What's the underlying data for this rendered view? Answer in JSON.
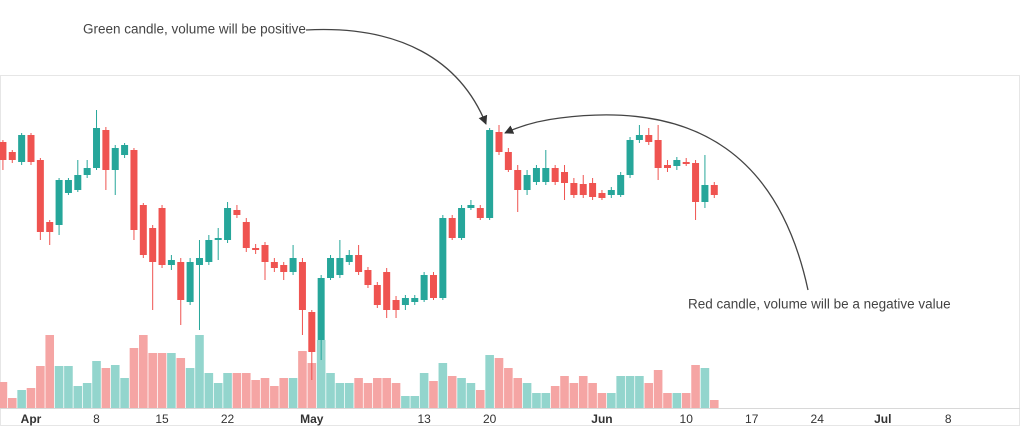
{
  "chart_data": {
    "type": "candlestick",
    "annotations": [
      "Green candle, volume will be positive",
      "Red candle, volume will be a negative value"
    ],
    "x": [
      "03-29",
      "03-30",
      "03-31",
      "04-01",
      "04-02",
      "04-03",
      "04-04",
      "04-05",
      "04-06",
      "04-07",
      "04-08",
      "04-09",
      "04-10",
      "04-11",
      "04-12",
      "04-13",
      "04-14",
      "04-15",
      "04-16",
      "04-17",
      "04-18",
      "04-19",
      "04-20",
      "04-21",
      "04-22",
      "04-23",
      "04-24",
      "04-25",
      "04-26",
      "04-27",
      "04-28",
      "04-29",
      "04-30",
      "05-01",
      "05-02",
      "05-03",
      "05-04",
      "05-05",
      "05-06",
      "05-07",
      "05-08",
      "05-09",
      "05-10",
      "05-11",
      "05-12",
      "05-13",
      "05-14",
      "05-15",
      "05-16",
      "05-17",
      "05-18",
      "05-19",
      "05-20",
      "05-21",
      "05-22",
      "05-23",
      "05-24",
      "05-25",
      "05-26",
      "05-27",
      "05-28",
      "05-29",
      "05-30",
      "05-31",
      "06-01",
      "06-02",
      "06-03",
      "06-04",
      "06-05",
      "06-06",
      "06-07",
      "06-08",
      "06-09",
      "06-10",
      "06-11",
      "06-12",
      "06-13"
    ],
    "open": [
      258,
      248,
      238,
      265,
      240,
      178,
      175,
      207,
      210,
      225,
      232,
      270,
      230,
      245,
      250,
      195,
      172,
      192,
      135,
      138,
      98,
      135,
      138,
      160,
      160,
      190,
      178,
      152,
      155,
      138,
      135,
      128,
      138,
      88,
      60,
      122,
      125,
      138,
      145,
      130,
      115,
      128,
      100,
      95,
      98,
      100,
      125,
      102,
      182,
      162,
      192,
      192,
      182,
      268,
      248,
      230,
      210,
      218,
      218,
      232,
      228,
      217,
      216,
      217,
      207,
      205,
      205,
      225,
      260,
      265,
      260,
      235,
      234,
      238,
      237,
      198,
      215
    ],
    "high": [
      260,
      250,
      267,
      267,
      242,
      180,
      222,
      222,
      240,
      240,
      290,
      273,
      255,
      257,
      252,
      197,
      175,
      195,
      145,
      142,
      142,
      160,
      165,
      172,
      198,
      195,
      182,
      156,
      158,
      142,
      138,
      155,
      142,
      90,
      125,
      145,
      160,
      150,
      155,
      133,
      118,
      132,
      104,
      105,
      105,
      128,
      128,
      185,
      185,
      195,
      200,
      195,
      272,
      275,
      252,
      235,
      230,
      235,
      250,
      235,
      235,
      222,
      225,
      222,
      210,
      213,
      228,
      263,
      275,
      272,
      275,
      240,
      243,
      242,
      240,
      245,
      218
    ],
    "low": [
      230,
      237,
      235,
      235,
      160,
      155,
      165,
      205,
      208,
      222,
      230,
      210,
      205,
      242,
      160,
      142,
      90,
      132,
      130,
      75,
      95,
      70,
      135,
      140,
      157,
      182,
      148,
      146,
      120,
      128,
      120,
      125,
      65,
      20,
      40,
      120,
      122,
      135,
      125,
      112,
      92,
      82,
      82,
      90,
      95,
      98,
      100,
      100,
      160,
      160,
      190,
      180,
      180,
      245,
      228,
      188,
      205,
      215,
      215,
      215,
      200,
      202,
      202,
      200,
      200,
      202,
      203,
      222,
      257,
      255,
      220,
      228,
      230,
      234,
      180,
      192,
      202
    ],
    "close": [
      240,
      240,
      265,
      238,
      168,
      168,
      220,
      220,
      225,
      232,
      272,
      230,
      252,
      255,
      170,
      145,
      138,
      135,
      140,
      100,
      138,
      142,
      160,
      162,
      192,
      185,
      152,
      150,
      138,
      132,
      128,
      142,
      90,
      48,
      122,
      142,
      142,
      145,
      128,
      115,
      95,
      90,
      90,
      102,
      102,
      125,
      102,
      182,
      162,
      192,
      195,
      182,
      270,
      248,
      230,
      210,
      225,
      232,
      232,
      218,
      217,
      205,
      205,
      203,
      202,
      210,
      225,
      260,
      265,
      258,
      232,
      232,
      240,
      236,
      198,
      215,
      205
    ],
    "volume": [
      -26,
      -10,
      18,
      -20,
      -42,
      -73,
      42,
      42,
      22,
      25,
      47,
      -40,
      43,
      30,
      -60,
      -73,
      -55,
      -55,
      55,
      -50,
      40,
      73,
      35,
      25,
      35,
      -35,
      -35,
      -28,
      -30,
      -22,
      -30,
      30,
      -57,
      -45,
      68,
      35,
      25,
      25,
      -30,
      -25,
      -30,
      -30,
      -25,
      12,
      12,
      35,
      -27,
      45,
      -32,
      30,
      25,
      -18,
      53,
      -50,
      -40,
      -30,
      25,
      15,
      15,
      -22,
      -32,
      -25,
      -32,
      -25,
      -15,
      15,
      32,
      32,
      32,
      -25,
      -38,
      -15,
      15,
      -15,
      -43,
      40,
      -8
    ],
    "up_color": "#26a69a",
    "down_color": "#ef5350",
    "volume_up_color": "#93d5cd",
    "volume_down_color": "#f5a5a4",
    "ylim": [
      0,
      330
    ],
    "vlim": [
      0,
      80
    ],
    "xticks": [
      {
        "value": "04-01",
        "label": "Apr"
      },
      {
        "value": "04-08",
        "label": "8"
      },
      {
        "value": "04-15",
        "label": "15"
      },
      {
        "value": "04-22",
        "label": "22"
      },
      {
        "value": "05-01",
        "label": "May"
      },
      {
        "value": "05-13",
        "label": "13"
      },
      {
        "value": "05-20",
        "label": "20"
      },
      {
        "value": "06-01",
        "label": "Jun"
      },
      {
        "value": "06-10",
        "label": "10"
      },
      {
        "value": "06-17",
        "label": "17"
      },
      {
        "value": "06-24",
        "label": "24"
      },
      {
        "value": "07-01",
        "label": "Jul"
      },
      {
        "value": "07-08",
        "label": "8"
      }
    ]
  }
}
